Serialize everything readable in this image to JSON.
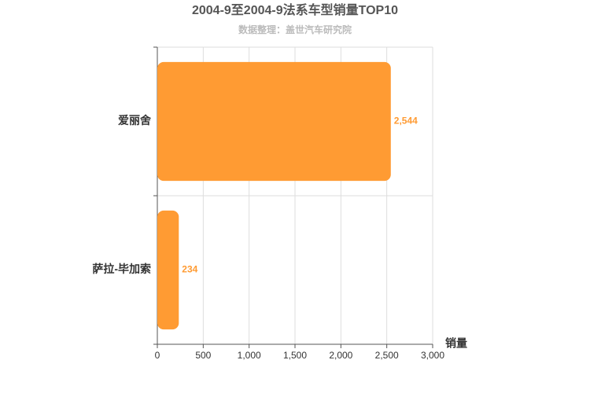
{
  "chart_data": {
    "type": "bar",
    "orientation": "horizontal",
    "title": "2004-9至2004-9法系车型销量TOP10",
    "subtitle": "数据整理：盖世汽车研究院",
    "x_label": "销量",
    "categories": [
      "爱丽舍",
      "萨拉-毕加索"
    ],
    "values": [
      2544,
      234
    ],
    "value_labels": [
      "2,544",
      "234"
    ],
    "color": "#ff9b33",
    "xlim": [
      0,
      3000
    ],
    "xticks": [
      0,
      500,
      {
        "value": 1000,
        "label": "1,000"
      },
      {
        "value": 1500,
        "label": "1,500"
      },
      {
        "value": 2000,
        "label": "2,000"
      },
      {
        "value": 2500,
        "label": "2,500"
      },
      {
        "value": 3000,
        "label": "3,000"
      }
    ],
    "grid": true
  }
}
